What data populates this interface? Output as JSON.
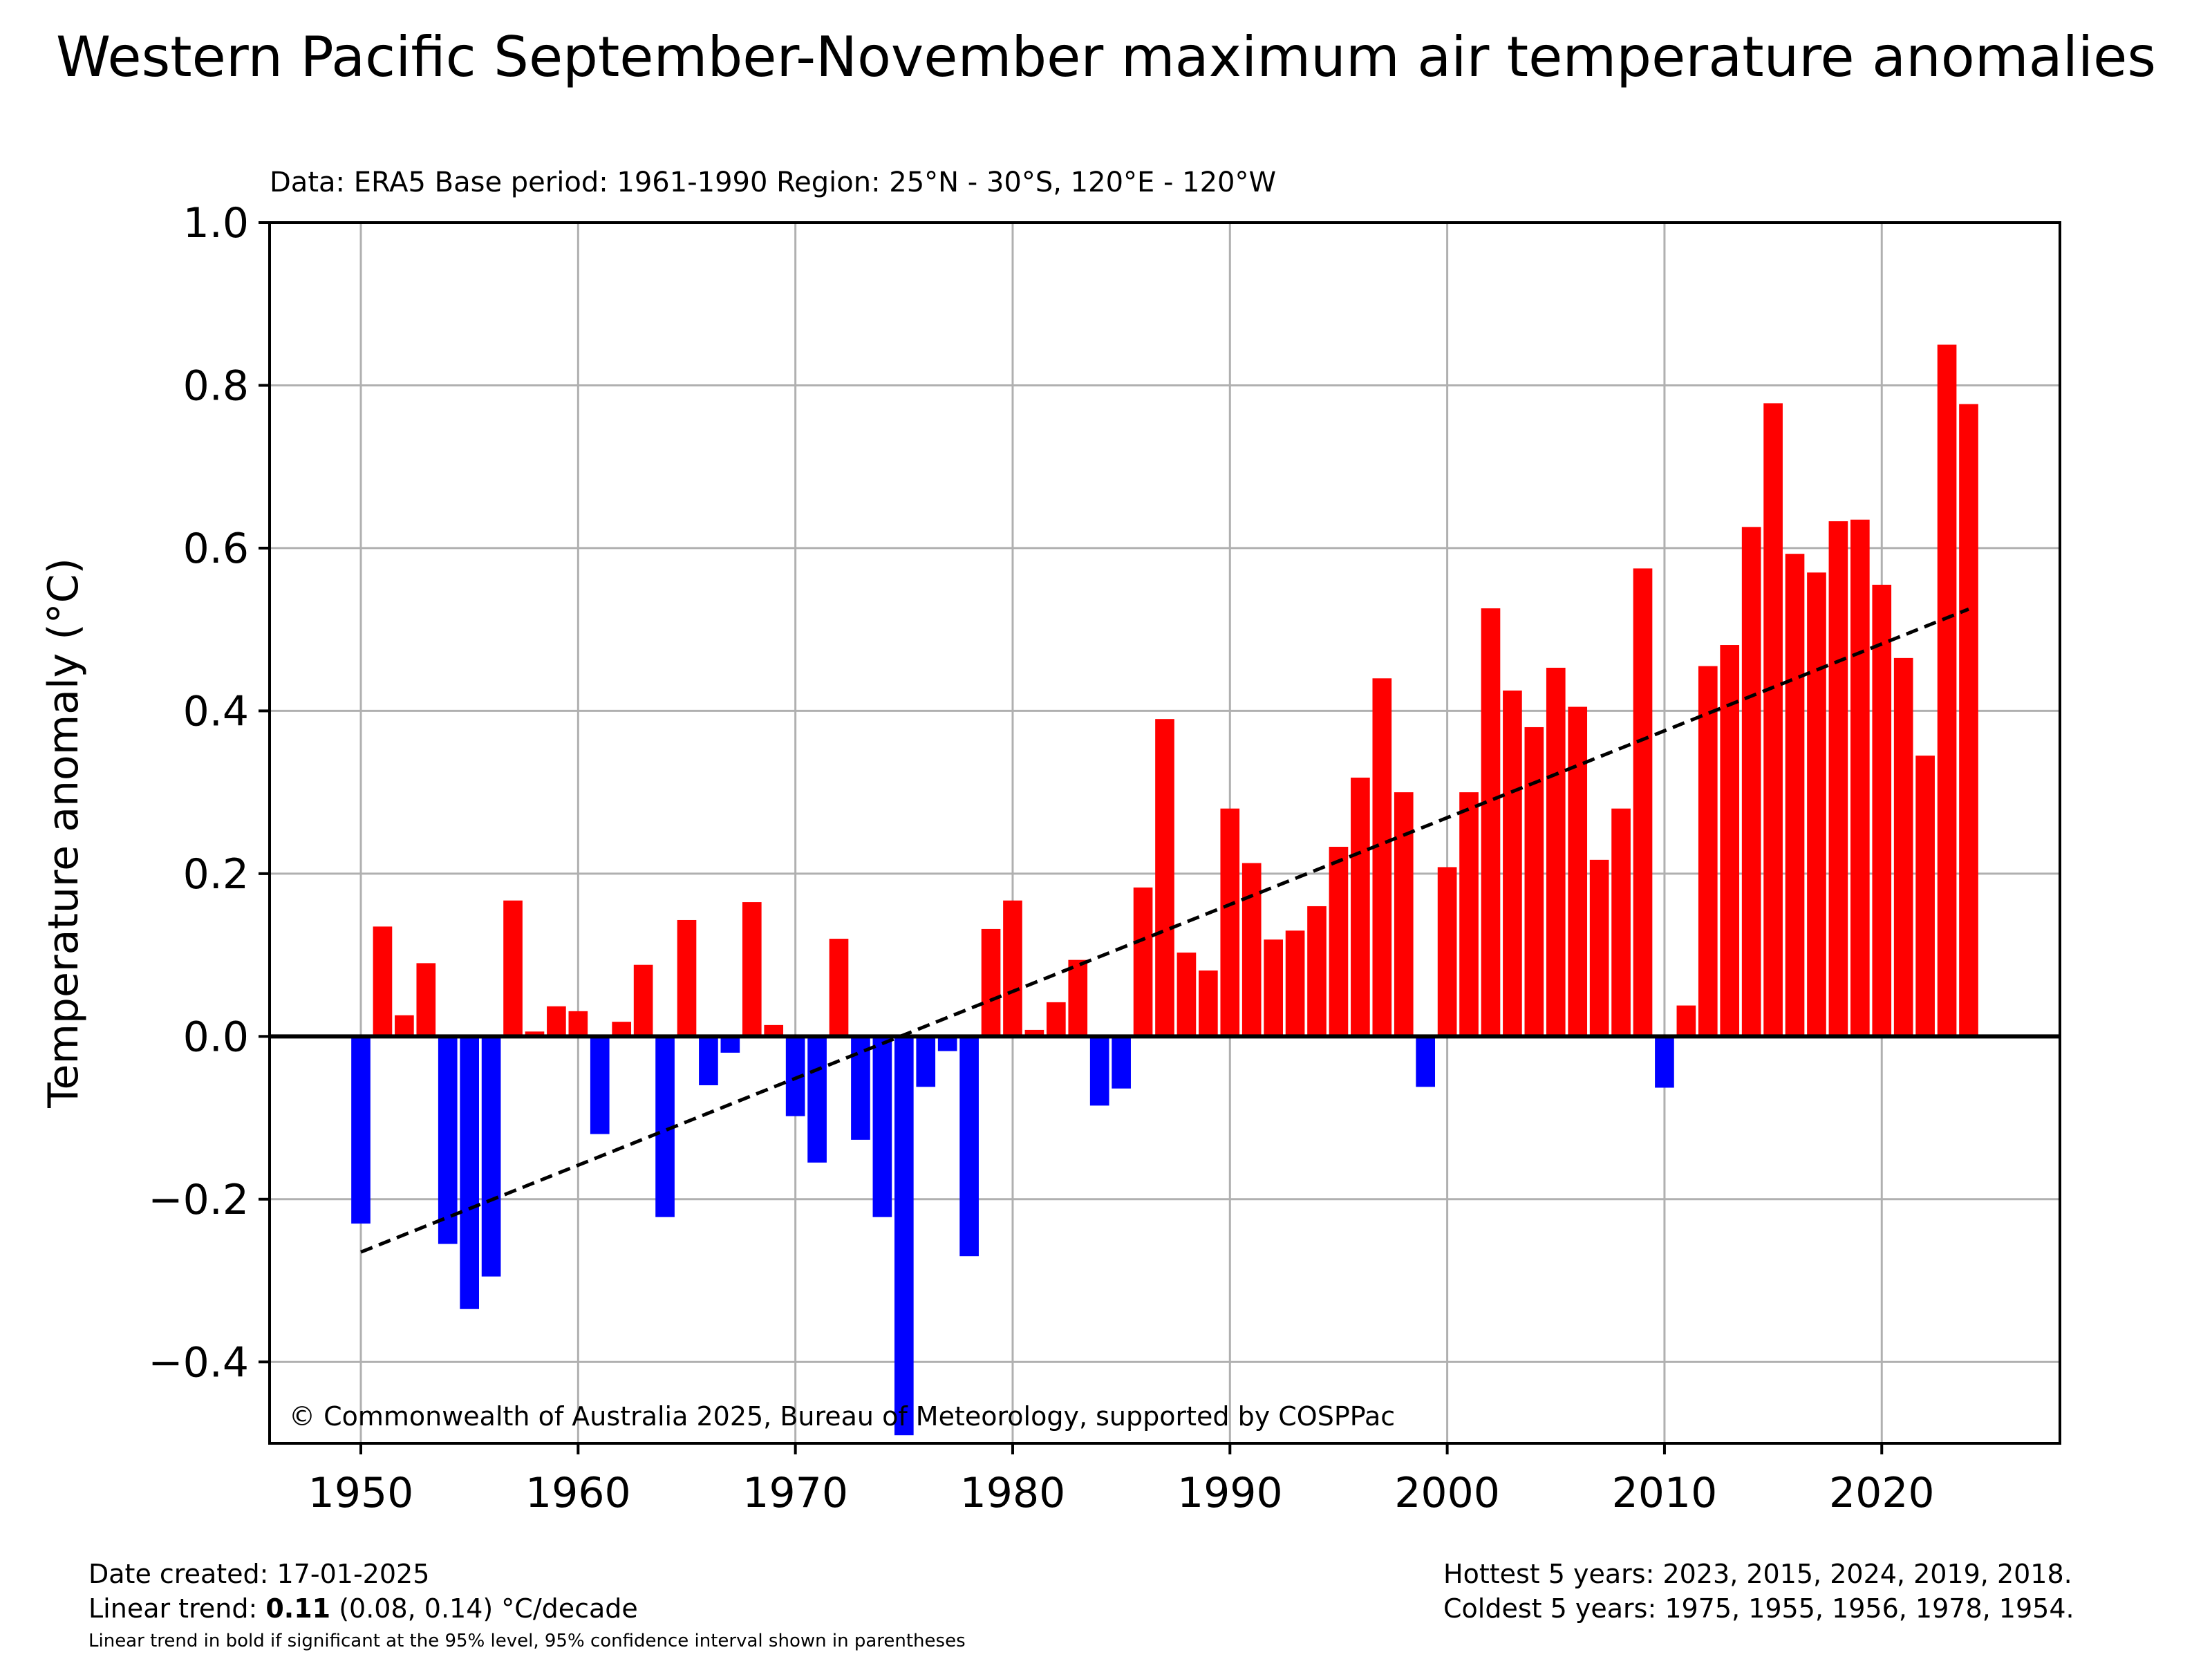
{
  "title": "Western Pacific September-November maximum air temperature anomalies",
  "subtitle": "Data: ERA5  Base period: 1961-1990  Region: 25°N - 30°S, 120°E - 120°W",
  "copyright": "© Commonwealth of Australia 2025, Bureau of Meteorology, supported by COSPPac",
  "footer": {
    "date_created": "Date created: 17-01-2025",
    "trend_prefix": "Linear trend: ",
    "trend_value": "0.11",
    "trend_suffix": " (0.08, 0.14) °C/decade",
    "footnote": "Linear trend in bold if significant at the 95% level, 95% confidence interval shown in parentheses",
    "hottest": "Hottest 5 years: 2023, 2015, 2024, 2019, 2018.",
    "coldest": "Coldest 5 years: 1975, 1955, 1956, 1978, 1954."
  },
  "colors": {
    "positive": "#ff0000",
    "negative": "#0000ff",
    "grid": "#b0b0b0",
    "trend": "#000000"
  },
  "chart_data": {
    "type": "bar",
    "title": "Western Pacific September-November maximum air temperature anomalies",
    "ylabel": "Temperature anomaly (°C)",
    "xlabel": "",
    "xlim": [
      1945.8,
      2028.2
    ],
    "ylim": [
      -0.5,
      1.0
    ],
    "xticks": [
      1950,
      1960,
      1970,
      1980,
      1990,
      2000,
      2010,
      2020
    ],
    "yticks": [
      1.0,
      0.8,
      0.6,
      0.4,
      0.2,
      0.0,
      -0.2,
      -0.4
    ],
    "ytick_labels": [
      "1.0",
      "0.8",
      "0.6",
      "0.4",
      "0.2",
      "0.0",
      "−0.2",
      "−0.4"
    ],
    "grid": true,
    "years": [
      1950,
      1951,
      1952,
      1953,
      1954,
      1955,
      1956,
      1957,
      1958,
      1959,
      1960,
      1961,
      1962,
      1963,
      1964,
      1965,
      1966,
      1967,
      1968,
      1969,
      1970,
      1971,
      1972,
      1973,
      1974,
      1975,
      1976,
      1977,
      1978,
      1979,
      1980,
      1981,
      1982,
      1983,
      1984,
      1985,
      1986,
      1987,
      1988,
      1989,
      1990,
      1991,
      1992,
      1993,
      1994,
      1995,
      1996,
      1997,
      1998,
      1999,
      2000,
      2001,
      2002,
      2003,
      2004,
      2005,
      2006,
      2007,
      2008,
      2009,
      2010,
      2011,
      2012,
      2013,
      2014,
      2015,
      2016,
      2017,
      2018,
      2019,
      2020,
      2021,
      2022,
      2023,
      2024
    ],
    "values": [
      -0.23,
      0.135,
      0.026,
      0.09,
      -0.255,
      -0.335,
      -0.295,
      0.167,
      0.006,
      0.037,
      0.031,
      -0.12,
      0.018,
      0.088,
      -0.222,
      0.143,
      -0.06,
      -0.02,
      0.165,
      0.014,
      -0.098,
      -0.155,
      0.12,
      -0.127,
      -0.222,
      -0.49,
      -0.062,
      -0.018,
      -0.27,
      0.132,
      0.167,
      0.008,
      0.042,
      0.094,
      -0.085,
      -0.064,
      0.183,
      0.39,
      0.103,
      0.081,
      0.28,
      0.213,
      0.119,
      0.13,
      0.16,
      0.233,
      0.318,
      0.44,
      0.3,
      -0.062,
      0.208,
      0.3,
      0.526,
      0.425,
      0.38,
      0.453,
      0.405,
      0.217,
      0.28,
      0.575,
      -0.063,
      0.038,
      0.455,
      0.481,
      0.626,
      0.778,
      0.593,
      0.57,
      0.633,
      0.635,
      0.555,
      0.465,
      0.345,
      0.85,
      0.777
    ],
    "trend_line": {
      "x": [
        1950,
        2024
      ],
      "y": [
        -0.265,
        0.525
      ]
    }
  }
}
